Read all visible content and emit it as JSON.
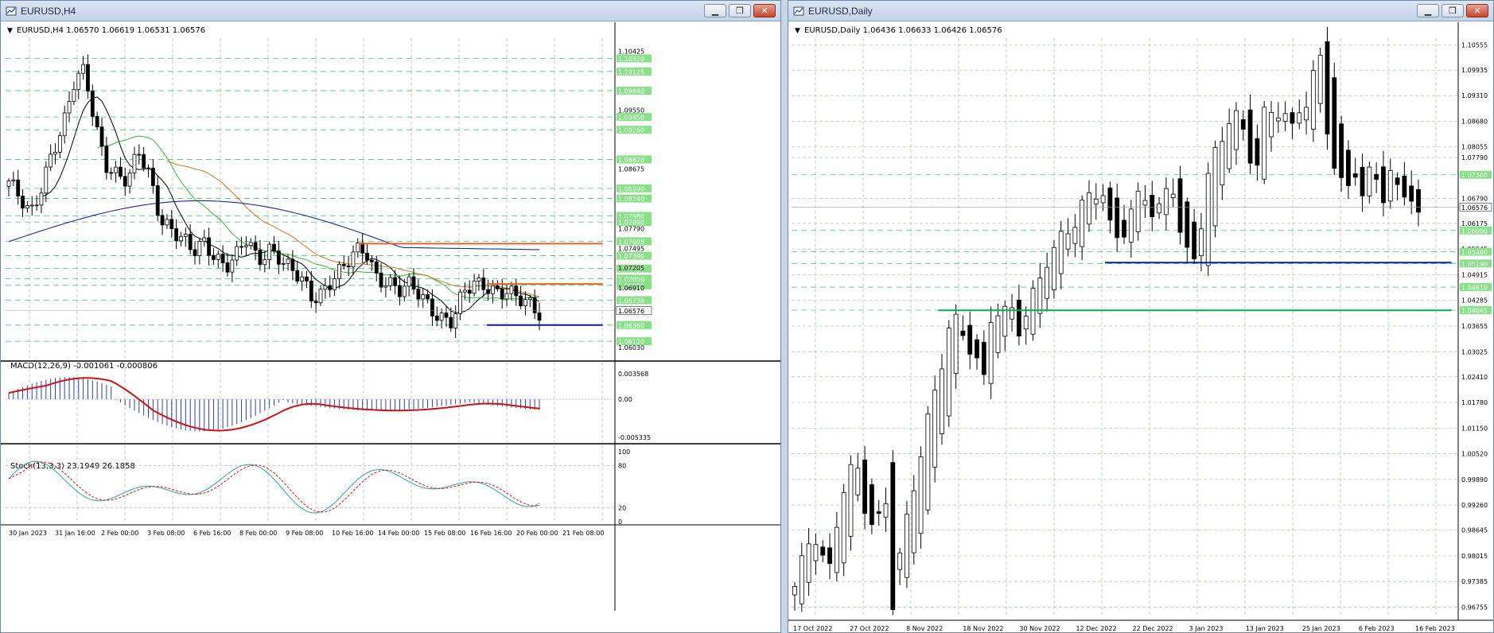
{
  "colors": {
    "bull": "#ffffff",
    "bear": "#000000",
    "grid": "#a8c8a8",
    "level_green": "#00b050",
    "level_blue": "#0a1aa0",
    "level_orange": "#e8641e",
    "ma_black": "#000000",
    "ma_green": "#3cb043",
    "ma_orange": "#c0782a",
    "ma_navy": "#1e2b8c",
    "macd_hist": "#3040a0",
    "macd_signal": "#c81414",
    "stoch_main": "#30a0a8",
    "stoch_signal": "#c81414",
    "label_bg": "#88e088"
  },
  "icons": [
    "chart-window-icon",
    "minimize-icon",
    "restore-icon",
    "close-icon",
    "dropdown-triangle-icon"
  ],
  "left_window": {
    "title": "EURUSD,H4",
    "buttons": {
      "minimize": "▁",
      "restore": "❐",
      "close": "✕"
    },
    "header": "EURUSD,H4  1.06570 1.06619 1.06531 1.06576",
    "macd_label": "MACD(12,26,9) -0.001061 -0.000806",
    "stoch_label": "Stoch(13,3,3) 23.1949 26.1858",
    "x_labels": [
      "30 Jan 2023",
      "31 Jan 16:00",
      "2 Feb 00:00",
      "3 Feb 08:00",
      "6 Feb 16:00",
      "8 Feb 00:00",
      "9 Feb 08:00",
      "10 Feb 16:00",
      "14 Feb 00:00",
      "15 Feb 08:00",
      "16 Feb 16:00",
      "20 Feb 00:00",
      "21 Feb 08:00"
    ],
    "price_ticks": [
      "1.10425",
      "1.09550",
      "1.08675",
      "1.07790",
      "1.07495",
      "1.07205",
      "1.06910",
      "1.06030"
    ],
    "green_labels": [
      "1.10320",
      "1.10125",
      "1.09840",
      "1.09450",
      "1.09260",
      "1.08820",
      "1.08390",
      "1.08240",
      "1.07980",
      "1.07890",
      "1.07605",
      "1.07390",
      "1.07200",
      "1.07050",
      "1.06950",
      "1.06730",
      "1.06360",
      "1.06120"
    ],
    "current_price": "1.06576",
    "macd_ticks": [
      "0.003568",
      "0.00",
      "-0.005335"
    ],
    "stoch_ticks": [
      "100",
      "80",
      "20",
      "0"
    ]
  },
  "right_window": {
    "title": "EURUSD,Daily",
    "buttons": {
      "minimize": "▁",
      "restore": "❐",
      "close": "✕"
    },
    "header": "EURUSD,Daily  1.06436 1.06633 1.06426 1.06576",
    "x_labels": [
      "17 Oct 2022",
      "27 Oct 2022",
      "8 Nov 2022",
      "18 Nov 2022",
      "30 Nov 2022",
      "12 Dec 2022",
      "22 Dec 2022",
      "3 Jan 2023",
      "13 Jan 2023",
      "25 Jan 2023",
      "6 Feb 2023",
      "16 Feb 2023"
    ],
    "price_ticks": [
      "1.10555",
      "1.09935",
      "1.09310",
      "1.08680",
      "1.08055",
      "1.07790",
      "1.06790",
      "1.06175",
      "1.05545",
      "1.04915",
      "1.04285",
      "1.03655",
      "1.03025",
      "1.02410",
      "1.01780",
      "1.01150",
      "1.00520",
      "0.99890",
      "0.99260",
      "0.98645",
      "0.98015",
      "0.97385",
      "0.96755"
    ],
    "green_labels": [
      "1.07368",
      "1.06000",
      "1.05480",
      "1.05190",
      "1.04610",
      "1.04045"
    ],
    "current_price": "1.06576"
  },
  "chart_data": [
    {
      "type": "candlestick",
      "title": "EURUSD,H4",
      "ohlc_header": {
        "open": 1.0657,
        "high": 1.06619,
        "low": 1.06531,
        "close": 1.06576
      },
      "ylim": [
        1.0585,
        1.1062
      ],
      "close_path": [
        1.085,
        1.082,
        1.0795,
        1.0842,
        1.09,
        1.093,
        1.099,
        1.101,
        1.0935,
        1.088,
        1.086,
        1.0845,
        1.089,
        1.086,
        1.08,
        1.078,
        1.076,
        1.074,
        1.076,
        1.0745,
        1.0725,
        1.0735,
        1.076,
        1.073,
        1.0755,
        1.074,
        1.0715,
        1.07,
        1.0675,
        1.069,
        1.0712,
        1.072,
        1.074,
        1.0745,
        1.071,
        1.0705,
        1.0685,
        1.069,
        1.068,
        1.0665,
        1.065,
        1.064,
        1.068,
        1.0695,
        1.07,
        1.069,
        1.0685,
        1.067,
        1.0665,
        1.0657
      ],
      "horizontal_levels": [
        {
          "price": 1.0757,
          "color": "orange"
        },
        {
          "price": 1.0697,
          "color": "orange"
        },
        {
          "price": 1.0636,
          "color": "blue"
        }
      ],
      "macd": {
        "label": "MACD(12,26,9)",
        "main": -0.001061,
        "signal": -0.000806,
        "ylim": [
          -0.005335,
          0.003568
        ]
      },
      "stochastic": {
        "label": "Stoch(13,3,3)",
        "k": 23.1949,
        "d": 26.1858,
        "levels": [
          20,
          80
        ],
        "ylim": [
          0,
          100
        ]
      }
    },
    {
      "type": "candlestick",
      "title": "EURUSD,Daily",
      "ohlc_header": {
        "open": 1.06436,
        "high": 1.06633,
        "low": 1.06426,
        "close": 1.06576
      },
      "ylim": [
        0.9655,
        1.1072
      ],
      "close_path": [
        0.972,
        0.976,
        0.983,
        0.98,
        0.978,
        0.988,
        0.996,
        1.0,
        0.995,
        0.988,
        0.993,
        0.976,
        0.98,
        0.99,
        1.0,
        1.01,
        1.02,
        1.03,
        1.035,
        1.034,
        1.03,
        1.025,
        1.036,
        1.038,
        1.04,
        1.038,
        1.04,
        1.045,
        1.05,
        1.053,
        1.057,
        1.06,
        1.064,
        1.068,
        1.07,
        1.064,
        1.06,
        1.062,
        1.065,
        1.067,
        1.064,
        1.067,
        1.07,
        1.062,
        1.055,
        1.06,
        1.07,
        1.076,
        1.083,
        1.086,
        1.083,
        1.078,
        1.085,
        1.088,
        1.09,
        1.086,
        1.088,
        1.091,
        1.099,
        1.09,
        1.08,
        1.073,
        1.075,
        1.071,
        1.074,
        1.07,
        1.072,
        1.069,
        1.07,
        1.0657
      ],
      "horizontal_levels": [
        {
          "price": 1.0521,
          "color": "blue"
        },
        {
          "price": 1.0404,
          "color": "green"
        }
      ]
    }
  ]
}
